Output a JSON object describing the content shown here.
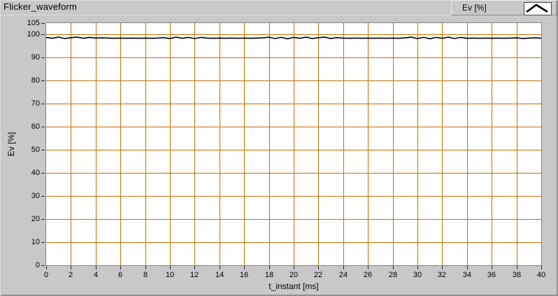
{
  "title": "Flicker_waveform",
  "legend": {
    "label": "Ev [%]",
    "sample_icon": "waveform-chevron-icon"
  },
  "colors": {
    "panel_bg": "#C8C8C8",
    "plot_bg": "#FFFFFF",
    "grid": "#C86E00",
    "plot_line": "#000000",
    "plot_border": "#828282",
    "tick": "#2A2A2A"
  },
  "chart_data": {
    "type": "line",
    "title": "Flicker_waveform",
    "xlabel": "t_instant [ms]",
    "ylabel": "Ev [%]",
    "xlim": [
      0,
      40
    ],
    "ylim": [
      0,
      105
    ],
    "x_ticks": [
      0,
      2,
      4,
      6,
      8,
      10,
      12,
      14,
      16,
      18,
      20,
      22,
      24,
      26,
      28,
      30,
      32,
      34,
      36,
      38,
      40
    ],
    "y_ticks": [
      0,
      10,
      20,
      30,
      40,
      50,
      60,
      70,
      80,
      90,
      100,
      105
    ],
    "grid": true,
    "grid_color": "#C86E00",
    "legend_position": "top-right",
    "series": [
      {
        "name": "Ev [%]",
        "color": "#000000",
        "x_start": 0,
        "x_step": 0.5,
        "values": [
          98.8,
          98.4,
          98.9,
          98.3,
          98.7,
          98.9,
          98.4,
          98.8,
          98.5,
          98.6,
          98.5,
          98.4,
          98.5,
          98.4,
          98.5,
          98.4,
          98.5,
          98.4,
          98.5,
          98.7,
          98.3,
          98.9,
          98.4,
          98.8,
          98.3,
          98.8,
          98.5,
          98.4,
          98.5,
          98.4,
          98.5,
          98.4,
          98.5,
          98.4,
          98.5,
          98.6,
          98.9,
          98.3,
          98.8,
          98.2,
          98.8,
          98.4,
          98.9,
          98.3,
          98.7,
          98.9,
          98.3,
          98.7,
          98.5,
          98.4,
          98.5,
          98.4,
          98.5,
          98.4,
          98.5,
          98.4,
          98.5,
          98.4,
          98.6,
          98.9,
          98.3,
          98.8,
          98.2,
          98.8,
          98.4,
          98.9,
          98.3,
          98.8,
          98.4,
          98.5,
          98.4,
          98.5,
          98.4,
          98.5,
          98.4,
          98.5,
          98.6,
          98.3,
          98.5,
          98.6,
          98.4
        ]
      }
    ]
  }
}
